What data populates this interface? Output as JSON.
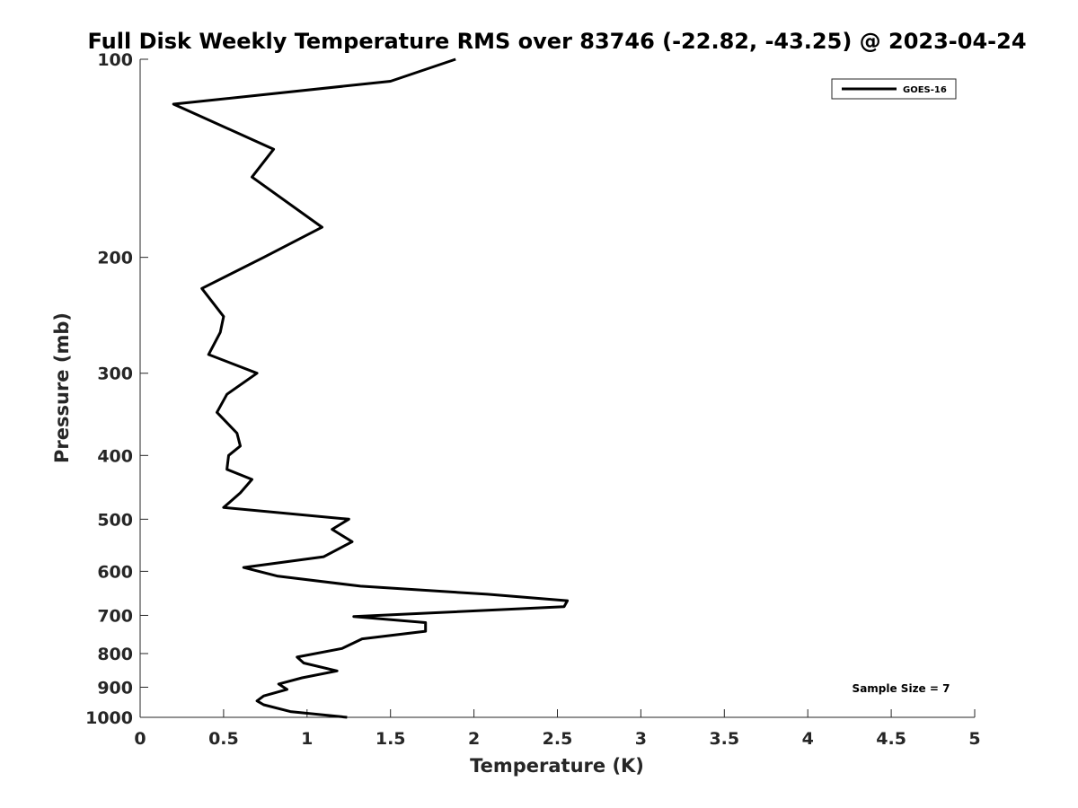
{
  "chart_data": {
    "type": "line",
    "title": "Full Disk Weekly Temperature RMS over 83746 (-22.82, -43.25) @ 2023-04-24",
    "xlabel": "Temperature (K)",
    "ylabel": "Pressure (mb)",
    "xlim": [
      0,
      5
    ],
    "ylim": [
      100,
      1000
    ],
    "yscale": "log",
    "y_reversed": true,
    "x_ticks": [
      "0",
      "0.5",
      "1",
      "1.5",
      "2",
      "2.5",
      "3",
      "3.5",
      "4",
      "4.5",
      "5"
    ],
    "y_ticks": [
      "100",
      "200",
      "300",
      "400",
      "500",
      "600",
      "700",
      "800",
      "900",
      "1000"
    ],
    "grid": false,
    "legend_position": "top-right",
    "series": [
      {
        "name": "GOES-16",
        "color": "#000000",
        "points": [
          [
            1.89,
            100
          ],
          [
            1.5,
            108
          ],
          [
            0.2,
            117
          ],
          [
            0.8,
            137
          ],
          [
            0.67,
            151
          ],
          [
            1.09,
            180
          ],
          [
            0.74,
            200
          ],
          [
            0.37,
            223
          ],
          [
            0.5,
            246
          ],
          [
            0.48,
            260
          ],
          [
            0.41,
            281
          ],
          [
            0.7,
            300
          ],
          [
            0.52,
            323
          ],
          [
            0.46,
            344
          ],
          [
            0.58,
            370
          ],
          [
            0.6,
            387
          ],
          [
            0.53,
            400
          ],
          [
            0.52,
            420
          ],
          [
            0.67,
            435
          ],
          [
            0.6,
            456
          ],
          [
            0.5,
            480
          ],
          [
            1.25,
            500
          ],
          [
            1.15,
            518
          ],
          [
            1.27,
            541
          ],
          [
            1.1,
            570
          ],
          [
            0.62,
            592
          ],
          [
            0.82,
            610
          ],
          [
            1.32,
            632
          ],
          [
            2.08,
            650
          ],
          [
            2.56,
            665
          ],
          [
            2.54,
            679
          ],
          [
            1.28,
            703
          ],
          [
            1.71,
            718
          ],
          [
            1.71,
            740
          ],
          [
            1.33,
            760
          ],
          [
            1.21,
            786
          ],
          [
            0.94,
            810
          ],
          [
            0.98,
            827
          ],
          [
            1.18,
            850
          ],
          [
            0.97,
            871
          ],
          [
            0.83,
            890
          ],
          [
            0.88,
            907
          ],
          [
            0.74,
            928
          ],
          [
            0.7,
            944
          ],
          [
            0.74,
            957
          ],
          [
            0.9,
            980
          ],
          [
            1.24,
            1000
          ]
        ]
      }
    ],
    "annotations": [
      "Sample Size = 7"
    ]
  }
}
